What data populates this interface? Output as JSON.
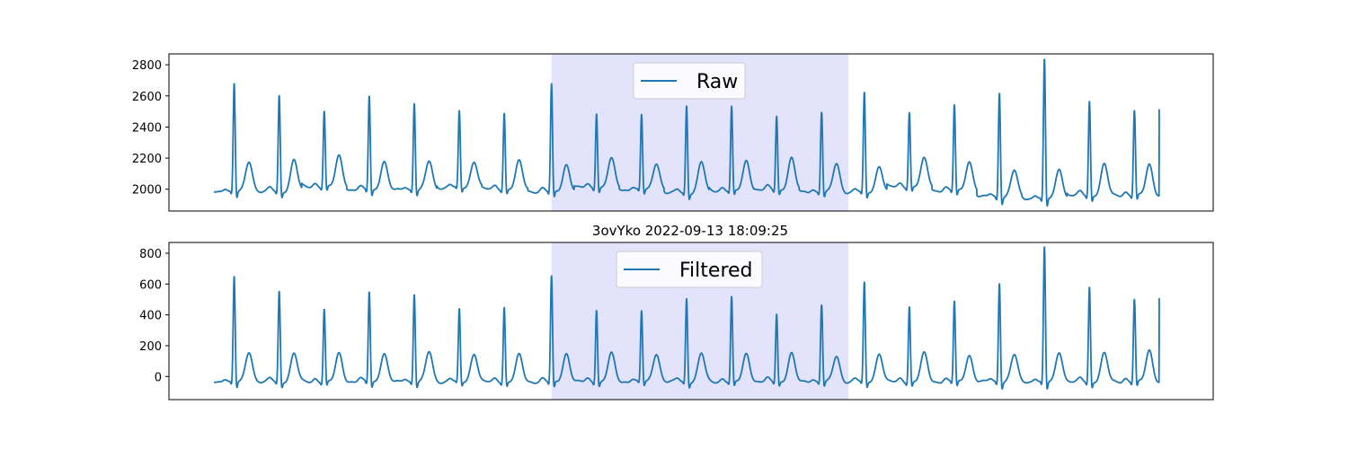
{
  "colors": {
    "line": "#1f77b4",
    "highlight": "#e3e3fb",
    "axis": "#000000",
    "legend_border": "#cccccc"
  },
  "chart_data": [
    {
      "type": "line",
      "title": "",
      "xlabel": "",
      "ylabel": "",
      "x_ticks_visible": false,
      "grid": false,
      "legend_position": "top-center",
      "series": [
        {
          "name": "Raw"
        }
      ],
      "ylim": [
        1860,
        2870
      ],
      "yticks": [
        2000,
        2200,
        2400,
        2600,
        2800
      ],
      "ytick_labels": [
        "2000",
        "2200",
        "2400",
        "2600",
        "2800"
      ],
      "xlim": [
        0,
        23.2
      ],
      "highlight_span": [
        8.5,
        15.1
      ],
      "waveform": {
        "beat_times": [
          1.45,
          2.45,
          3.45,
          4.45,
          5.45,
          6.45,
          7.45,
          8.5,
          9.5,
          10.5,
          11.5,
          12.5,
          13.5,
          14.5,
          15.45,
          16.45,
          17.45,
          18.45,
          19.45,
          20.45,
          21.45
        ],
        "r_peaks": [
          2680,
          2605,
          2505,
          2605,
          2560,
          2500,
          2495,
          2675,
          2495,
          2480,
          2540,
          2530,
          2475,
          2500,
          2620,
          2500,
          2545,
          2630,
          2835,
          2570,
          2510
        ],
        "t_peaks": [
          2180,
          2190,
          2215,
          2180,
          2180,
          2180,
          2180,
          2160,
          2195,
          2170,
          2175,
          2185,
          2200,
          2165,
          2150,
          2195,
          2180,
          2120,
          2135,
          2160,
          2160
        ],
        "baseline": [
          1985,
          1985,
          2015,
          1995,
          1995,
          2010,
          2000,
          1985,
          2010,
          1995,
          1975,
          1990,
          1995,
          1980,
          1980,
          2015,
          1990,
          1950,
          1940,
          1960,
          1960
        ],
        "end_value": 2160,
        "end_peak": 2510
      }
    },
    {
      "type": "line",
      "title": "3ovYko 2022-09-13 18:09:25",
      "xlabel": "",
      "ylabel": "",
      "x_ticks_visible": false,
      "grid": false,
      "legend_position": "top-center",
      "series": [
        {
          "name": "Filtered"
        }
      ],
      "ylim": [
        -150,
        870
      ],
      "yticks": [
        0,
        200,
        400,
        600,
        800
      ],
      "ytick_labels": [
        "0",
        "200",
        "400",
        "600",
        "800"
      ],
      "xlim": [
        0,
        23.2
      ],
      "highlight_span": [
        8.5,
        15.1
      ],
      "waveform": {
        "beat_times": [
          1.45,
          2.45,
          3.45,
          4.45,
          5.45,
          6.45,
          7.45,
          8.5,
          9.5,
          10.5,
          11.5,
          12.5,
          13.5,
          14.5,
          15.45,
          16.45,
          17.45,
          18.45,
          19.45,
          20.45,
          21.45
        ],
        "r_peaks": [
          650,
          555,
          440,
          555,
          540,
          435,
          455,
          650,
          440,
          425,
          510,
          515,
          410,
          470,
          610,
          460,
          490,
          615,
          840,
          585,
          505
        ],
        "t_peaks": [
          160,
          150,
          150,
          150,
          160,
          150,
          140,
          150,
          150,
          150,
          150,
          150,
          150,
          130,
          150,
          150,
          140,
          140,
          160,
          150,
          170
        ],
        "baseline": [
          -35,
          -35,
          -35,
          -35,
          -35,
          -35,
          -35,
          -35,
          -35,
          -35,
          -35,
          -35,
          -35,
          -35,
          -35,
          -35,
          -35,
          -35,
          -35,
          -35,
          -35
        ],
        "end_value": 180,
        "end_peak": 505
      }
    }
  ]
}
